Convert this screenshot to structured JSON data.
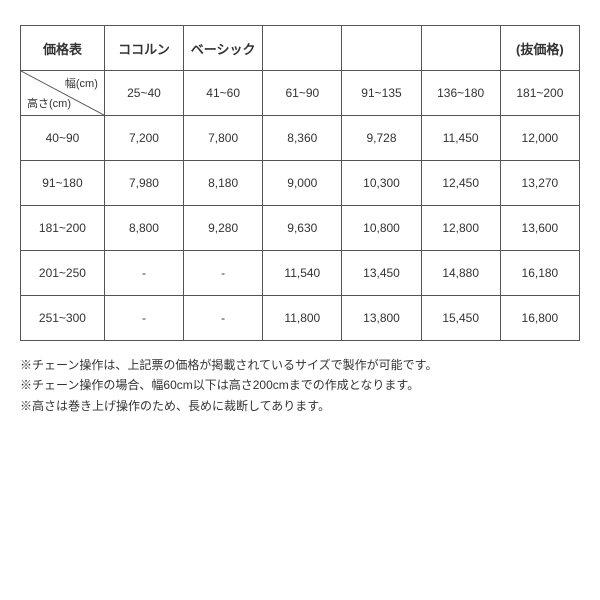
{
  "table": {
    "header1": {
      "title": "価格表",
      "col2": "ココルン",
      "col3": "ベーシック",
      "col4": "",
      "col5": "",
      "col6": "",
      "col7": "(抜価格)"
    },
    "header2": {
      "diag_top": "幅(cm)",
      "diag_bottom": "高さ(cm)",
      "widths": [
        "25~40",
        "41~60",
        "61~90",
        "91~135",
        "136~180",
        "181~200"
      ]
    },
    "rows": [
      {
        "h": "40~90",
        "cells": [
          "7,200",
          "7,800",
          "8,360",
          "9,728",
          "11,450",
          "12,000"
        ]
      },
      {
        "h": "91~180",
        "cells": [
          "7,980",
          "8,180",
          "9,000",
          "10,300",
          "12,450",
          "13,270"
        ]
      },
      {
        "h": "181~200",
        "cells": [
          "8,800",
          "9,280",
          "9,630",
          "10,800",
          "12,800",
          "13,600"
        ]
      },
      {
        "h": "201~250",
        "cells": [
          "-",
          "-",
          "11,540",
          "13,450",
          "14,880",
          "16,180"
        ]
      },
      {
        "h": "251~300",
        "cells": [
          "-",
          "-",
          "11,800",
          "13,800",
          "15,450",
          "16,800"
        ]
      }
    ]
  },
  "notes": [
    "※チェーン操作は、上記票の価格が掲載されているサイズで製作が可能です。",
    "※チェーン操作の場合、幅60cm以下は高さ200cmまでの作成となります。",
    "※高さは巻き上げ操作のため、長めに裁断してあります。"
  ]
}
